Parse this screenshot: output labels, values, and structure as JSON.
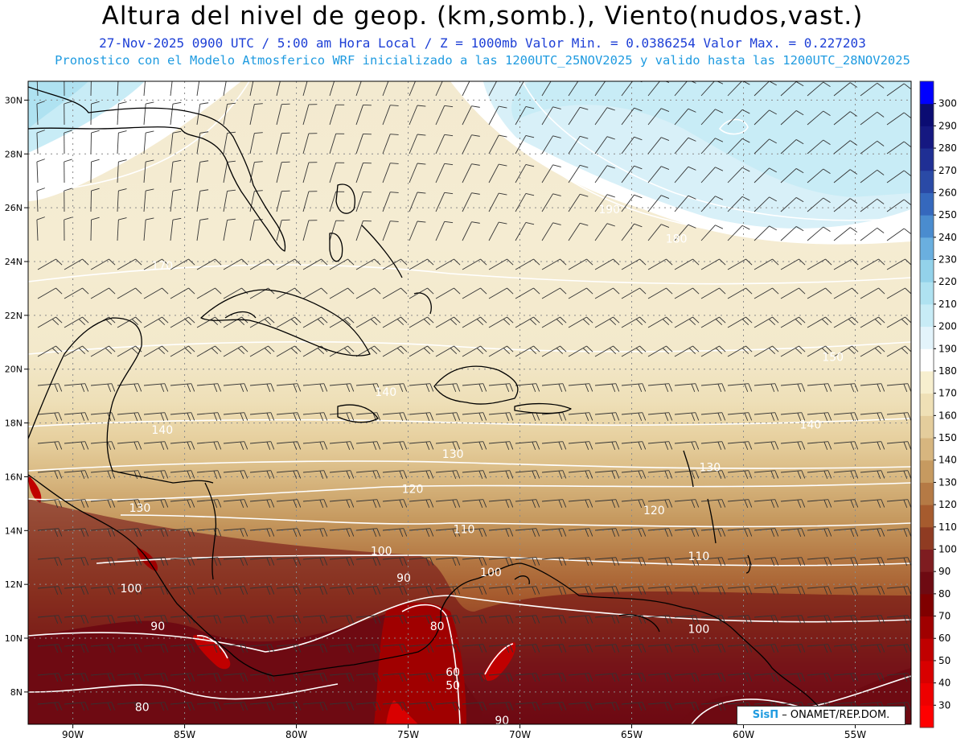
{
  "header": {
    "title": "Altura del nivel de geop. (km,somb.), Viento(nudos,vast.)",
    "subtitle1": "27-Nov-2025  0900 UTC / 5:00 am Hora Local / Z = 1000mb  Valor Min. = 0.0386254  Valor Max. = 0.227203",
    "subtitle2": "Pronostico con el Modelo Atmosferico WRF inicializado a las 1200UTC_25NOV2025 y valido hasta las  1200UTC_28NOV2025"
  },
  "credit": {
    "brand": "SisΠ",
    "text": " – ONAMET/REP.DOM."
  },
  "chart_data": {
    "type": "heatmap",
    "x_ticks": [
      "90W",
      "85W",
      "80W",
      "75W",
      "70W",
      "65W",
      "60W",
      "55W"
    ],
    "y_ticks": [
      "30N",
      "28N",
      "26N",
      "24N",
      "22N",
      "20N",
      "18N",
      "16N",
      "14N",
      "12N",
      "10N",
      "8N"
    ],
    "xlim": [
      -92,
      -52.5
    ],
    "ylim": [
      6.8,
      30.7
    ],
    "colorbar": {
      "levels": [
        30,
        40,
        50,
        60,
        70,
        80,
        90,
        100,
        110,
        120,
        130,
        140,
        150,
        160,
        170,
        180,
        190,
        200,
        210,
        220,
        230,
        240,
        250,
        260,
        270,
        280,
        290,
        300
      ],
      "colors": [
        "#ff0000",
        "#ee0000",
        "#d80000",
        "#c00000",
        "#a00000",
        "#800000",
        "#6e0a12",
        "#7e1c20",
        "#8f3b22",
        "#a65b2e",
        "#b57a45",
        "#c69a60",
        "#d7b67f",
        "#e4cd9c",
        "#efe0b6",
        "#f7efcf",
        "#ffffff",
        "#e3f4fb",
        "#c8ecf6",
        "#afe2f1",
        "#93d2ea",
        "#6aafdf",
        "#4a8ccf",
        "#3568bd",
        "#2a4aa6",
        "#1f2f94",
        "#151881",
        "#0b0c73",
        "#0000ff"
      ]
    },
    "contour_labels": [
      {
        "label": "190",
        "lon": -66,
        "lat": 25.8
      },
      {
        "label": "180",
        "lon": -63,
        "lat": 24.7
      },
      {
        "label": "170",
        "lon": -86,
        "lat": 23.7
      },
      {
        "label": "150",
        "lon": -56,
        "lat": 20.3
      },
      {
        "label": "140",
        "lon": -76,
        "lat": 19.0
      },
      {
        "label": "140",
        "lon": -86,
        "lat": 17.6
      },
      {
        "label": "140",
        "lon": -57,
        "lat": 17.8
      },
      {
        "label": "130",
        "lon": -73,
        "lat": 16.7
      },
      {
        "label": "130",
        "lon": -87,
        "lat": 14.7
      },
      {
        "label": "130",
        "lon": -61.5,
        "lat": 16.2
      },
      {
        "label": "120",
        "lon": -74.8,
        "lat": 15.4
      },
      {
        "label": "120",
        "lon": -64,
        "lat": 14.6
      },
      {
        "label": "110",
        "lon": -72.5,
        "lat": 13.9
      },
      {
        "label": "110",
        "lon": -62,
        "lat": 12.9
      },
      {
        "label": "100",
        "lon": -76.2,
        "lat": 13.1
      },
      {
        "label": "100",
        "lon": -87.4,
        "lat": 11.7
      },
      {
        "label": "100",
        "lon": -71.3,
        "lat": 12.3
      },
      {
        "label": "100",
        "lon": -62,
        "lat": 10.2
      },
      {
        "label": "90",
        "lon": -75.2,
        "lat": 12.1
      },
      {
        "label": "90",
        "lon": -86.2,
        "lat": 10.3
      },
      {
        "label": "90",
        "lon": -70.8,
        "lat": 6.8
      },
      {
        "label": "80",
        "lon": -86.9,
        "lat": 7.3
      },
      {
        "label": "80",
        "lon": -73.7,
        "lat": 10.3
      },
      {
        "label": "60",
        "lon": -73,
        "lat": 8.6
      },
      {
        "label": "50",
        "lon": -73,
        "lat": 8.1
      }
    ],
    "wind": {
      "type": "barbs",
      "units": "knots",
      "flow": "northeasterly to easterly"
    }
  }
}
